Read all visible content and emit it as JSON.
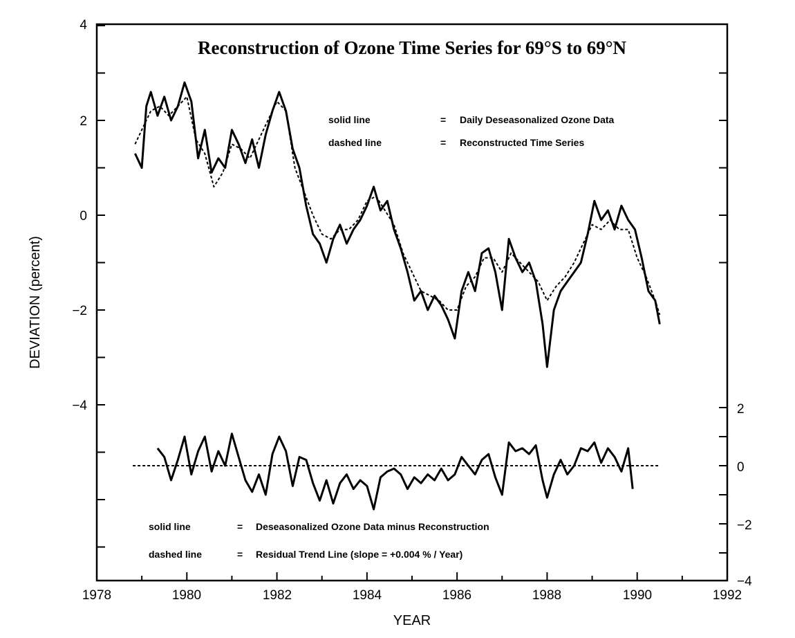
{
  "chart_data": [
    {
      "type": "line",
      "panel": "upper",
      "title": "Reconstruction of Ozone Time Series for 69°S to 69°N",
      "xlabel": "YEAR",
      "ylabel": "DEVIATION (percent)",
      "xlim": [
        1978,
        1992
      ],
      "ylim": [
        -4,
        4
      ],
      "xticks": [
        "1978",
        "1980",
        "1982",
        "1984",
        "1986",
        "1988",
        "1990",
        "1992"
      ],
      "yticks": [
        "4",
        "2",
        "0",
        "−2",
        "−4"
      ],
      "legend": [
        {
          "style": "solid line",
          "sep": "=",
          "text": "Daily Deseasonalized Ozone Data"
        },
        {
          "style": "dashed line",
          "sep": "=",
          "text": "Reconstructed Time Series"
        }
      ],
      "series": [
        {
          "style": "solid",
          "x": [
            1978.85,
            1979.0,
            1979.1,
            1979.2,
            1979.35,
            1979.5,
            1979.65,
            1979.8,
            1979.95,
            1980.1,
            1980.25,
            1980.4,
            1980.55,
            1980.7,
            1980.85,
            1981.0,
            1981.15,
            1981.3,
            1981.45,
            1981.6,
            1981.75,
            1981.9,
            1982.05,
            1982.2,
            1982.35,
            1982.5,
            1982.65,
            1982.8,
            1982.95,
            1983.1,
            1983.25,
            1983.4,
            1983.55,
            1983.7,
            1983.85,
            1984.0,
            1984.15,
            1984.3,
            1984.45,
            1984.6,
            1984.75,
            1984.9,
            1985.05,
            1985.2,
            1985.35,
            1985.5,
            1985.65,
            1985.8,
            1985.95,
            1986.1,
            1986.25,
            1986.4,
            1986.55,
            1986.7,
            1986.85,
            1987.0,
            1987.15,
            1987.3,
            1987.45,
            1987.6,
            1987.75,
            1987.9,
            1988.0,
            1988.15,
            1988.3,
            1988.45,
            1988.6,
            1988.75,
            1988.9,
            1989.05,
            1989.2,
            1989.35,
            1989.5,
            1989.65,
            1989.8,
            1989.95,
            1990.1,
            1990.25,
            1990.4,
            1990.5
          ],
          "y": [
            1.3,
            1.0,
            2.3,
            2.6,
            2.1,
            2.5,
            2.0,
            2.3,
            2.8,
            2.4,
            1.2,
            1.8,
            0.9,
            1.2,
            1.0,
            1.8,
            1.5,
            1.1,
            1.6,
            1.0,
            1.7,
            2.2,
            2.6,
            2.2,
            1.4,
            1.0,
            0.2,
            -0.4,
            -0.6,
            -1.0,
            -0.5,
            -0.2,
            -0.6,
            -0.3,
            -0.1,
            0.2,
            0.6,
            0.1,
            0.3,
            -0.3,
            -0.7,
            -1.2,
            -1.8,
            -1.6,
            -2.0,
            -1.7,
            -1.9,
            -2.2,
            -2.6,
            -1.6,
            -1.2,
            -1.6,
            -0.8,
            -0.7,
            -1.2,
            -2.0,
            -0.5,
            -0.9,
            -1.2,
            -1.0,
            -1.4,
            -2.3,
            -3.2,
            -2.0,
            -1.6,
            -1.4,
            -1.2,
            -1.0,
            -0.4,
            0.3,
            -0.1,
            0.1,
            -0.3,
            0.2,
            -0.1,
            -0.3,
            -0.9,
            -1.6,
            -1.8,
            -2.3
          ]
        },
        {
          "style": "dashed",
          "x": [
            1978.85,
            1979.0,
            1979.2,
            1979.4,
            1979.6,
            1979.8,
            1980.0,
            1980.2,
            1980.4,
            1980.6,
            1980.8,
            1981.0,
            1981.2,
            1981.4,
            1981.6,
            1981.8,
            1982.0,
            1982.2,
            1982.4,
            1982.6,
            1982.8,
            1983.0,
            1983.2,
            1983.4,
            1983.6,
            1983.8,
            1984.0,
            1984.2,
            1984.4,
            1984.6,
            1984.8,
            1985.0,
            1985.2,
            1985.4,
            1985.6,
            1985.8,
            1986.0,
            1986.2,
            1986.4,
            1986.6,
            1986.8,
            1987.0,
            1987.2,
            1987.4,
            1987.6,
            1987.8,
            1988.0,
            1988.2,
            1988.4,
            1988.6,
            1988.8,
            1989.0,
            1989.2,
            1989.4,
            1989.6,
            1989.8,
            1990.0,
            1990.2,
            1990.4,
            1990.5
          ],
          "y": [
            1.5,
            1.8,
            2.2,
            2.3,
            2.1,
            2.3,
            2.5,
            1.6,
            1.3,
            0.6,
            0.9,
            1.5,
            1.4,
            1.2,
            1.6,
            2.0,
            2.4,
            2.2,
            1.0,
            0.5,
            0.0,
            -0.4,
            -0.5,
            -0.3,
            -0.3,
            -0.1,
            0.3,
            0.4,
            0.1,
            -0.2,
            -0.8,
            -1.2,
            -1.6,
            -1.7,
            -1.8,
            -2.0,
            -2.0,
            -1.5,
            -1.3,
            -0.9,
            -0.9,
            -1.2,
            -0.8,
            -1.0,
            -1.2,
            -1.4,
            -1.8,
            -1.5,
            -1.3,
            -1.0,
            -0.6,
            -0.2,
            -0.3,
            -0.1,
            -0.3,
            -0.3,
            -0.9,
            -1.3,
            -1.8,
            -2.1
          ]
        }
      ]
    },
    {
      "type": "line",
      "panel": "lower",
      "xlim": [
        1978,
        1992
      ],
      "ylim": [
        -4,
        2
      ],
      "yticks": [
        "2",
        "0",
        "−2",
        "−4"
      ],
      "legend": [
        {
          "style": "solid line",
          "sep": "=",
          "text": "Deseasonalized Ozone Data minus Reconstruction"
        },
        {
          "style": "dashed line",
          "sep": "=",
          "text": "Residual Trend Line (slope = +0.004 % / Year)"
        }
      ],
      "series": [
        {
          "style": "solid",
          "x": [
            1979.35,
            1979.5,
            1979.65,
            1979.8,
            1979.95,
            1980.1,
            1980.25,
            1980.4,
            1980.55,
            1980.7,
            1980.85,
            1981.0,
            1981.15,
            1981.3,
            1981.45,
            1981.6,
            1981.75,
            1981.9,
            1982.05,
            1982.2,
            1982.35,
            1982.5,
            1982.65,
            1982.8,
            1982.95,
            1983.1,
            1983.25,
            1983.4,
            1983.55,
            1983.7,
            1983.85,
            1984.0,
            1984.15,
            1984.3,
            1984.45,
            1984.6,
            1984.75,
            1984.9,
            1985.05,
            1985.2,
            1985.35,
            1985.5,
            1985.65,
            1985.8,
            1985.95,
            1986.1,
            1986.25,
            1986.4,
            1986.55,
            1986.7,
            1986.85,
            1987.0,
            1987.15,
            1987.3,
            1987.45,
            1987.6,
            1987.75,
            1987.9,
            1988.0,
            1988.15,
            1988.3,
            1988.45,
            1988.6,
            1988.75,
            1988.9,
            1989.05,
            1989.2,
            1989.35,
            1989.5,
            1989.65,
            1989.8,
            1989.9
          ],
          "y": [
            0.6,
            0.3,
            -0.5,
            0.2,
            1.0,
            -0.3,
            0.5,
            1.0,
            -0.2,
            0.5,
            0.0,
            1.1,
            0.3,
            -0.5,
            -0.9,
            -0.3,
            -1.0,
            0.4,
            1.0,
            0.5,
            -0.7,
            0.3,
            0.2,
            -0.6,
            -1.2,
            -0.5,
            -1.3,
            -0.6,
            -0.3,
            -0.8,
            -0.5,
            -0.7,
            -1.5,
            -0.4,
            -0.2,
            -0.1,
            -0.3,
            -0.8,
            -0.4,
            -0.6,
            -0.3,
            -0.5,
            -0.1,
            -0.5,
            -0.3,
            0.3,
            0.0,
            -0.3,
            0.2,
            0.4,
            -0.4,
            -1.0,
            0.8,
            0.5,
            0.6,
            0.4,
            0.7,
            -0.5,
            -1.1,
            -0.3,
            0.2,
            -0.3,
            0.0,
            0.6,
            0.5,
            0.8,
            0.1,
            0.6,
            0.3,
            -0.2,
            0.6,
            -0.8
          ]
        },
        {
          "style": "dashed",
          "x": [
            1978.8,
            1990.5
          ],
          "y": [
            0.0,
            0.0
          ]
        }
      ]
    }
  ]
}
